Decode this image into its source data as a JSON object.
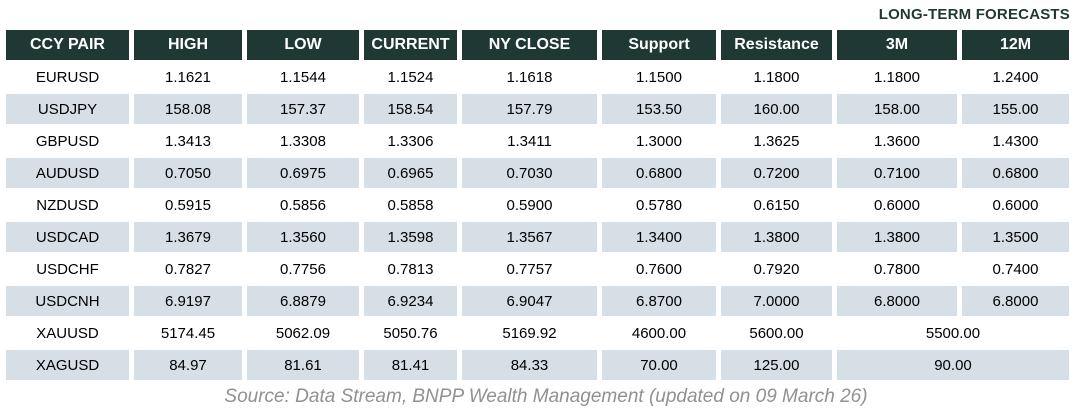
{
  "header": {
    "title": "LONG-TERM FORECASTS"
  },
  "chart_data": {
    "type": "table",
    "title": "LONG-TERM FORECASTS",
    "columns": [
      "CCY PAIR",
      "HIGH",
      "LOW",
      "CURRENT",
      "NY CLOSE",
      "Support",
      "Resistance",
      "3M",
      "12M"
    ],
    "rows": [
      {
        "pair": "EURUSD",
        "high": "1.1621",
        "low": "1.1544",
        "current": "1.1524",
        "ny_close": "1.1618",
        "support": "1.1500",
        "resistance": "1.1800",
        "m3": "1.1800",
        "m12": "1.2400"
      },
      {
        "pair": "USDJPY",
        "high": "158.08",
        "low": "157.37",
        "current": "158.54",
        "ny_close": "157.79",
        "support": "153.50",
        "resistance": "160.00",
        "m3": "158.00",
        "m12": "155.00"
      },
      {
        "pair": "GBPUSD",
        "high": "1.3413",
        "low": "1.3308",
        "current": "1.3306",
        "ny_close": "1.3411",
        "support": "1.3000",
        "resistance": "1.3625",
        "m3": "1.3600",
        "m12": "1.4300"
      },
      {
        "pair": "AUDUSD",
        "high": "0.7050",
        "low": "0.6975",
        "current": "0.6965",
        "ny_close": "0.7030",
        "support": "0.6800",
        "resistance": "0.7200",
        "m3": "0.7100",
        "m12": "0.6800"
      },
      {
        "pair": "NZDUSD",
        "high": "0.5915",
        "low": "0.5856",
        "current": "0.5858",
        "ny_close": "0.5900",
        "support": "0.5780",
        "resistance": "0.6150",
        "m3": "0.6000",
        "m12": "0.6000"
      },
      {
        "pair": "USDCAD",
        "high": "1.3679",
        "low": "1.3560",
        "current": "1.3598",
        "ny_close": "1.3567",
        "support": "1.3400",
        "resistance": "1.3800",
        "m3": "1.3800",
        "m12": "1.3500"
      },
      {
        "pair": "USDCHF",
        "high": "0.7827",
        "low": "0.7756",
        "current": "0.7813",
        "ny_close": "0.7757",
        "support": "0.7600",
        "resistance": "0.7920",
        "m3": "0.7800",
        "m12": "0.7400"
      },
      {
        "pair": "USDCNH",
        "high": "6.9197",
        "low": "6.8879",
        "current": "6.9234",
        "ny_close": "6.9047",
        "support": "6.8700",
        "resistance": "7.0000",
        "m3": "6.8000",
        "m12": "6.8000"
      },
      {
        "pair": "XAUUSD",
        "high": "5174.45",
        "low": "5062.09",
        "current": "5050.76",
        "ny_close": "5169.92",
        "support": "4600.00",
        "resistance": "5600.00",
        "forecast_merged": "5500.00"
      },
      {
        "pair": "XAGUSD",
        "high": "84.97",
        "low": "81.61",
        "current": "81.41",
        "ny_close": "84.33",
        "support": "70.00",
        "resistance": "125.00",
        "forecast_merged": "90.00"
      }
    ],
    "layout": {
      "shaded_row_indices": [
        1,
        3,
        5,
        7,
        9
      ],
      "merged_forecast_rows": [
        "XAUUSD",
        "XAGUSD"
      ]
    }
  },
  "footer": {
    "source": "Source: Data Stream, BNPP Wealth Management (updated on 09 March 26)"
  },
  "colors": {
    "header_bg": "#203833",
    "header_text": "#ffffff",
    "shaded_row_bg": "#d5dfe5",
    "title_text": "#1f3833",
    "body_text": "#000000",
    "footer_text": "#8f9193"
  }
}
